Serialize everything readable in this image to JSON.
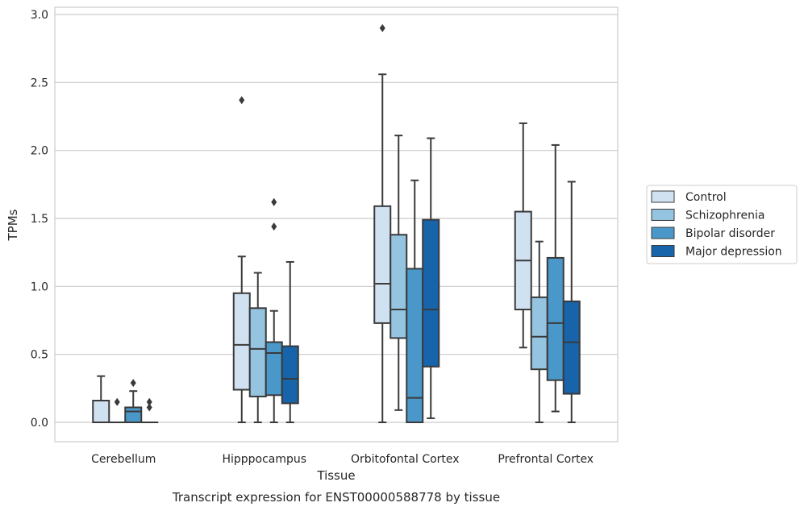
{
  "caption": "Transcript expression for ENST00000588778 by tissue",
  "chart_data": {
    "type": "boxplot",
    "title": "",
    "xlabel": "Tissue",
    "ylabel": "TPMs",
    "ylim": [
      -0.14,
      3.05
    ],
    "yticks": [
      0.0,
      0.5,
      1.0,
      1.5,
      2.0,
      2.5,
      3.0
    ],
    "ytick_labels": [
      "0.0",
      "0.5",
      "1.0",
      "1.5",
      "2.0",
      "2.5",
      "3.0"
    ],
    "grid": "horizontal",
    "legend_position": "right",
    "categories": [
      "Cerebellum",
      "Hipppocampus",
      "Orbitofontal Cortex",
      "Prefrontal Cortex"
    ],
    "series": [
      {
        "name": "Control",
        "color": "#d0e1f2",
        "boxes": [
          {
            "whislo": 0.0,
            "q1": 0.0,
            "med": 0.0,
            "q3": 0.16,
            "whishi": 0.34,
            "fliers": []
          },
          {
            "whislo": 0.0,
            "q1": 0.24,
            "med": 0.57,
            "q3": 0.95,
            "whishi": 1.22,
            "fliers": [
              2.37
            ]
          },
          {
            "whislo": 0.0,
            "q1": 0.73,
            "med": 1.02,
            "q3": 1.59,
            "whishi": 2.56,
            "fliers": [
              2.9
            ]
          },
          {
            "whislo": 0.55,
            "q1": 0.83,
            "med": 1.19,
            "q3": 1.55,
            "whishi": 2.2,
            "fliers": []
          }
        ]
      },
      {
        "name": "Schizophrenia",
        "color": "#94c4df",
        "boxes": [
          {
            "whislo": 0.0,
            "q1": 0.0,
            "med": 0.0,
            "q3": 0.0,
            "whishi": 0.0,
            "fliers": [
              0.15
            ]
          },
          {
            "whislo": 0.0,
            "q1": 0.19,
            "med": 0.54,
            "q3": 0.84,
            "whishi": 1.1,
            "fliers": []
          },
          {
            "whislo": 0.09,
            "q1": 0.62,
            "med": 0.83,
            "q3": 1.38,
            "whishi": 2.11,
            "fliers": []
          },
          {
            "whislo": 0.0,
            "q1": 0.39,
            "med": 0.63,
            "q3": 0.92,
            "whishi": 1.33,
            "fliers": []
          }
        ]
      },
      {
        "name": "Bipolar disorder",
        "color": "#4a98c9",
        "boxes": [
          {
            "whislo": 0.0,
            "q1": 0.0,
            "med": 0.08,
            "q3": 0.11,
            "whishi": 0.23,
            "fliers": [
              0.29
            ]
          },
          {
            "whislo": 0.0,
            "q1": 0.2,
            "med": 0.51,
            "q3": 0.59,
            "whishi": 0.82,
            "fliers": [
              1.44,
              1.62
            ]
          },
          {
            "whislo": 0.0,
            "q1": 0.0,
            "med": 0.18,
            "q3": 1.13,
            "whishi": 1.78,
            "fliers": []
          },
          {
            "whislo": 0.08,
            "q1": 0.31,
            "med": 0.73,
            "q3": 1.21,
            "whishi": 2.04,
            "fliers": []
          }
        ]
      },
      {
        "name": "Major depression",
        "color": "#1764ab",
        "boxes": [
          {
            "whislo": 0.0,
            "q1": 0.0,
            "med": 0.0,
            "q3": 0.0,
            "whishi": 0.0,
            "fliers": [
              0.11,
              0.15
            ]
          },
          {
            "whislo": 0.0,
            "q1": 0.14,
            "med": 0.32,
            "q3": 0.56,
            "whishi": 1.18,
            "fliers": []
          },
          {
            "whislo": 0.03,
            "q1": 0.41,
            "med": 0.83,
            "q3": 1.49,
            "whishi": 2.09,
            "fliers": []
          },
          {
            "whislo": 0.0,
            "q1": 0.21,
            "med": 0.59,
            "q3": 0.89,
            "whishi": 1.77,
            "fliers": []
          }
        ]
      }
    ]
  }
}
